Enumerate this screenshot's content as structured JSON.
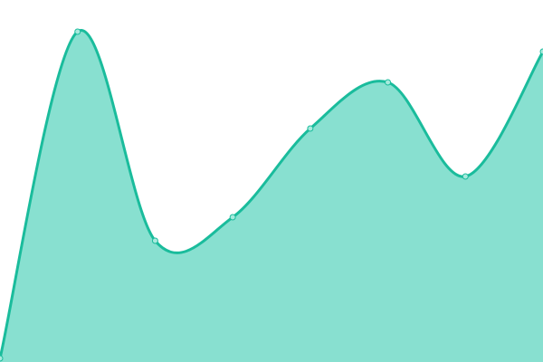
{
  "chart_data": {
    "type": "area",
    "x": [
      0,
      1,
      2,
      3,
      4,
      5,
      6,
      7
    ],
    "values": [
      4,
      365,
      134,
      160,
      258,
      309,
      205,
      343
    ],
    "ylim": [
      0,
      400
    ],
    "grid": false,
    "axes_visible": false,
    "curve": "smooth",
    "colors": {
      "line": "#1abc9c",
      "fill": "#88e0d0",
      "point_fill": "#a8eadd"
    }
  }
}
